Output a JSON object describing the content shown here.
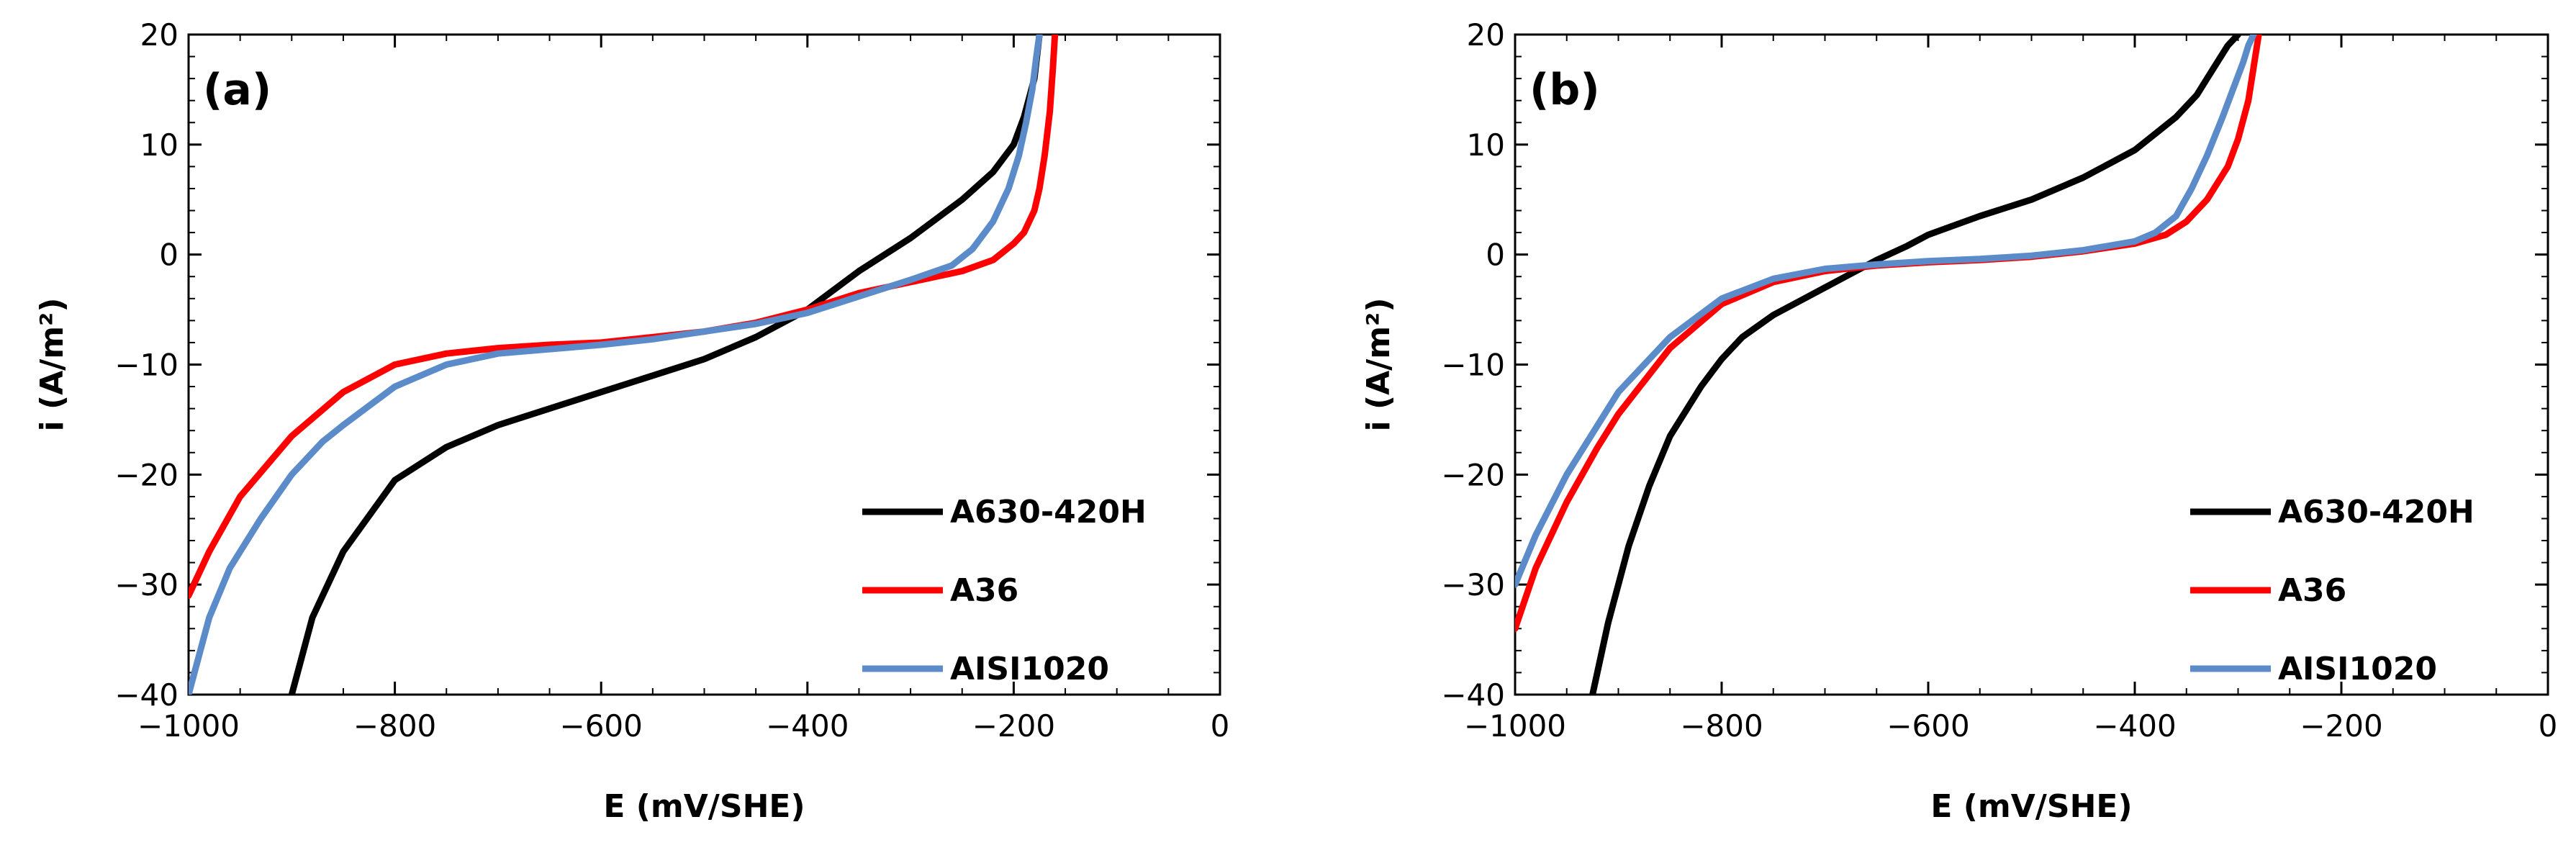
{
  "chart_data": [
    {
      "type": "line",
      "panel_label": "(a)",
      "xlabel": "E (mV/SHE)",
      "ylabel": "i (A/m²)",
      "xlim": [
        -1000,
        0
      ],
      "ylim": [
        -40,
        20
      ],
      "xticks": [
        -1000,
        -800,
        -600,
        -400,
        -200,
        0
      ],
      "yticks": [
        -40,
        -30,
        -20,
        -10,
        0,
        10,
        20
      ],
      "xtick_labels": [
        "−1000",
        "−800",
        "−600",
        "−400",
        "−200",
        "0"
      ],
      "ytick_labels": [
        "−40",
        "−30",
        "−20",
        "−10",
        "0",
        "10",
        "20"
      ],
      "grid": false,
      "legend_position": "bottom-right",
      "series": [
        {
          "name": "A630-420H",
          "color": "#000000",
          "x": [
            -900,
            -880,
            -850,
            -800,
            -750,
            -700,
            -650,
            -600,
            -550,
            -500,
            -450,
            -400,
            -350,
            -300,
            -250,
            -220,
            -200,
            -190,
            -180,
            -175
          ],
          "y": [
            -40,
            -33,
            -27,
            -20.5,
            -17.5,
            -15.5,
            -14,
            -12.5,
            -11,
            -9.5,
            -7.5,
            -5,
            -1.5,
            1.5,
            5,
            7.5,
            10,
            12.5,
            16,
            20
          ]
        },
        {
          "name": "A36",
          "color": "#ff0000",
          "x": [
            -1000,
            -980,
            -950,
            -900,
            -850,
            -800,
            -750,
            -700,
            -650,
            -600,
            -550,
            -500,
            -450,
            -400,
            -350,
            -300,
            -250,
            -220,
            -200,
            -190,
            -180,
            -175,
            -170,
            -165,
            -162,
            -160
          ],
          "y": [
            -31,
            -27,
            -22,
            -16.5,
            -12.5,
            -10,
            -9,
            -8.5,
            -8.2,
            -8,
            -7.5,
            -7,
            -6.2,
            -5,
            -3.5,
            -2.5,
            -1.5,
            -0.5,
            1,
            2,
            4,
            6,
            9,
            13,
            17,
            20
          ]
        },
        {
          "name": "AISI1020",
          "color": "#5b8bc9",
          "x": [
            -1000,
            -990,
            -980,
            -960,
            -930,
            -900,
            -870,
            -850,
            -800,
            -750,
            -700,
            -650,
            -600,
            -550,
            -500,
            -450,
            -400,
            -350,
            -300,
            -260,
            -240,
            -220,
            -205,
            -195,
            -188,
            -182,
            -178,
            -175
          ],
          "y": [
            -40,
            -36.5,
            -33,
            -28.5,
            -24,
            -20,
            -17,
            -15.5,
            -12,
            -10,
            -9,
            -8.6,
            -8.2,
            -7.7,
            -7,
            -6.3,
            -5.3,
            -3.8,
            -2.3,
            -1,
            0.5,
            3,
            6,
            9,
            12,
            15,
            18,
            20
          ]
        }
      ]
    },
    {
      "type": "line",
      "panel_label": "(b)",
      "xlabel": "E (mV/SHE)",
      "ylabel": "i (A/m²)",
      "xlim": [
        -1000,
        0
      ],
      "ylim": [
        -40,
        20
      ],
      "xticks": [
        -1000,
        -800,
        -600,
        -400,
        -200,
        0
      ],
      "yticks": [
        -40,
        -30,
        -20,
        -10,
        0,
        10,
        20
      ],
      "xtick_labels": [
        "−1000",
        "−800",
        "−600",
        "−400",
        "−200",
        "0"
      ],
      "ytick_labels": [
        "−40",
        "−30",
        "−20",
        "−10",
        "0",
        "10",
        "20"
      ],
      "grid": false,
      "legend_position": "bottom-right",
      "series": [
        {
          "name": "A630-420H",
          "color": "#000000",
          "x": [
            -925,
            -910,
            -890,
            -870,
            -850,
            -820,
            -800,
            -780,
            -750,
            -720,
            -700,
            -680,
            -650,
            -620,
            -600,
            -550,
            -500,
            -450,
            -400,
            -380,
            -360,
            -340,
            -330,
            -320,
            -310,
            -300
          ],
          "y": [
            -40,
            -33.5,
            -26.5,
            -21,
            -16.5,
            -12,
            -9.5,
            -7.5,
            -5.5,
            -4,
            -3,
            -2,
            -0.5,
            0.8,
            1.8,
            3.5,
            5,
            7,
            9.5,
            11,
            12.5,
            14.5,
            16,
            17.5,
            19,
            20
          ]
        },
        {
          "name": "A36",
          "color": "#ff0000",
          "x": [
            -1000,
            -980,
            -950,
            -920,
            -900,
            -850,
            -800,
            -750,
            -700,
            -650,
            -600,
            -550,
            -500,
            -450,
            -400,
            -370,
            -350,
            -330,
            -310,
            -300,
            -290,
            -285,
            -280
          ],
          "y": [
            -34,
            -28.5,
            -22.5,
            -17.5,
            -14.5,
            -8.5,
            -4.5,
            -2.5,
            -1.5,
            -1,
            -0.7,
            -0.5,
            -0.2,
            0.3,
            1,
            1.8,
            3,
            5,
            8,
            10.5,
            14,
            17,
            20
          ]
        },
        {
          "name": "AISI1020",
          "color": "#5b8bc9",
          "x": [
            -1000,
            -980,
            -950,
            -920,
            -900,
            -850,
            -800,
            -750,
            -700,
            -650,
            -600,
            -550,
            -500,
            -450,
            -400,
            -380,
            -360,
            -345,
            -330,
            -315,
            -305,
            -295,
            -290,
            -285
          ],
          "y": [
            -30,
            -25.5,
            -20,
            -15.5,
            -12.5,
            -7.5,
            -4,
            -2.2,
            -1.3,
            -0.9,
            -0.6,
            -0.4,
            -0.1,
            0.4,
            1.2,
            2,
            3.5,
            6,
            9,
            12.5,
            15,
            17.5,
            19,
            20
          ]
        }
      ]
    }
  ]
}
